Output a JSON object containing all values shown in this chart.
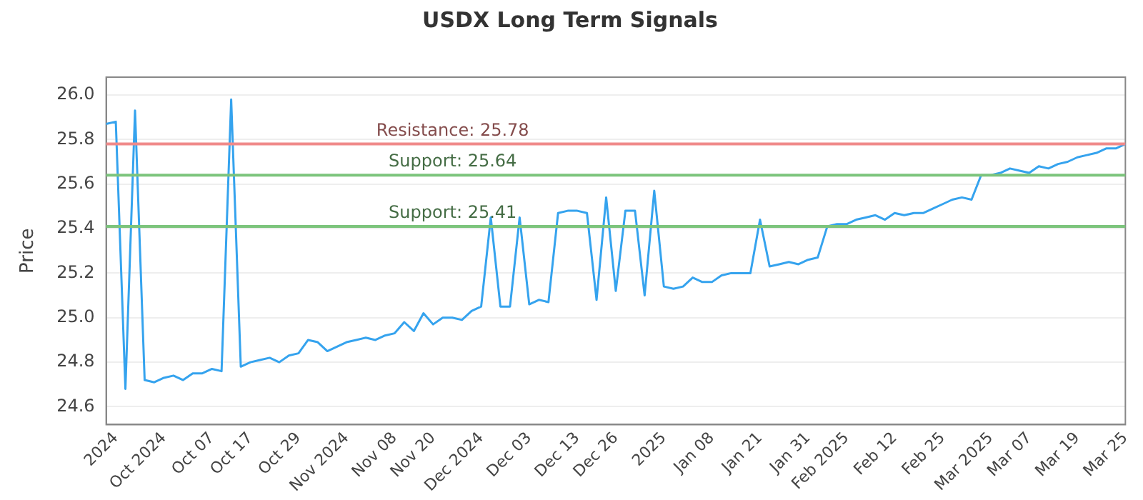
{
  "chart_data": {
    "type": "line",
    "title": "USDX Long Term Signals",
    "ylabel": "Price",
    "categories": [
      null,
      "2024",
      null,
      null,
      null,
      null,
      "Oct 2024",
      null,
      null,
      null,
      null,
      "Oct 07",
      null,
      null,
      null,
      "Oct 17",
      null,
      null,
      null,
      null,
      "Oct 29",
      null,
      null,
      null,
      null,
      "Nov 2024",
      null,
      null,
      null,
      null,
      "Nov 08",
      null,
      null,
      null,
      "Nov 20",
      null,
      null,
      null,
      null,
      "Dec 2024",
      null,
      null,
      null,
      null,
      "Dec 03",
      null,
      null,
      null,
      null,
      "Dec 13",
      null,
      null,
      null,
      "Dec 26",
      null,
      null,
      null,
      null,
      "2025",
      null,
      null,
      null,
      null,
      "Jan 08",
      null,
      null,
      null,
      null,
      "Jan 21",
      null,
      null,
      null,
      null,
      "Jan 31",
      null,
      null,
      null,
      "Feb 2025",
      null,
      null,
      null,
      null,
      "Feb 12",
      null,
      null,
      null,
      null,
      "Feb 25",
      null,
      null,
      null,
      null,
      "Mar 2025",
      null,
      null,
      null,
      "Mar 07",
      null,
      null,
      null,
      null,
      "Mar 19",
      null,
      null,
      null,
      null,
      "Mar 25"
    ],
    "series": [
      {
        "color": "#35a3ee",
        "values": [
          25.87,
          25.88,
          24.68,
          25.93,
          24.72,
          24.71,
          24.73,
          24.74,
          24.72,
          24.75,
          24.75,
          24.77,
          24.76,
          25.98,
          24.78,
          24.8,
          24.81,
          24.82,
          24.8,
          24.83,
          24.84,
          24.9,
          24.89,
          24.85,
          24.87,
          24.89,
          24.9,
          24.91,
          24.9,
          24.92,
          24.93,
          24.98,
          24.94,
          25.02,
          24.97,
          25.0,
          25.0,
          24.99,
          25.03,
          25.05,
          25.45,
          25.05,
          25.05,
          25.45,
          25.06,
          25.08,
          25.07,
          25.47,
          25.48,
          25.48,
          25.47,
          25.08,
          25.54,
          25.12,
          25.48,
          25.48,
          25.1,
          25.57,
          25.14,
          25.13,
          25.14,
          25.18,
          25.16,
          25.16,
          25.19,
          25.2,
          25.2,
          25.2,
          25.44,
          25.23,
          25.24,
          25.25,
          25.24,
          25.26,
          25.27,
          25.41,
          25.42,
          25.42,
          25.44,
          25.45,
          25.46,
          25.44,
          25.47,
          25.46,
          25.47,
          25.47,
          25.49,
          25.51,
          25.53,
          25.54,
          25.53,
          25.64,
          25.64,
          25.65,
          25.67,
          25.66,
          25.65,
          25.68,
          25.67,
          25.69,
          25.7,
          25.72,
          25.73,
          25.74,
          25.76,
          25.76,
          25.78
        ]
      }
    ],
    "ylim": [
      24.52,
      26.08
    ],
    "yticks": [
      {
        "value": 24.6,
        "label": "24.6"
      },
      {
        "value": 24.8,
        "label": "24.8"
      },
      {
        "value": 25,
        "label": "25.0"
      },
      {
        "value": 25.2,
        "label": "25.2"
      },
      {
        "value": 25.4,
        "label": "25.4"
      },
      {
        "value": 25.6,
        "label": "25.6"
      },
      {
        "value": 25.8,
        "label": "25.8"
      },
      {
        "value": 26,
        "label": "26.0"
      }
    ],
    "ref_lines": [
      {
        "axis": "y",
        "value": 25.78,
        "label": "Resistance: 25.78",
        "color": "#f08a8a"
      },
      {
        "axis": "y",
        "value": 25.64,
        "label": "Support: 25.64",
        "color": "#7cc47c"
      },
      {
        "axis": "y",
        "value": 25.41,
        "label": "Support: 25.41",
        "color": "#7cc47c"
      }
    ],
    "grid": "y",
    "marker": "none",
    "line_style": "solid",
    "legend": false
  }
}
